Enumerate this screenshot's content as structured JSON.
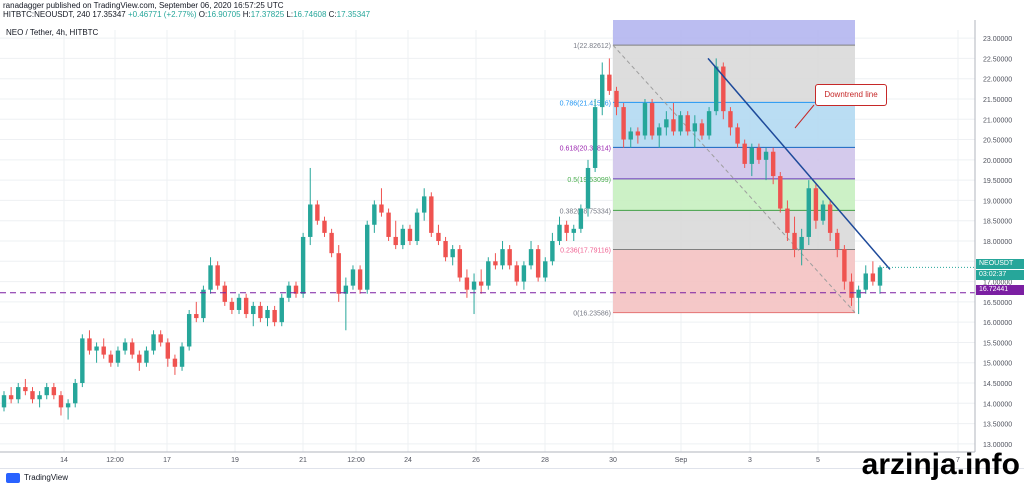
{
  "header": {
    "published": "ranadagger published on TradingView.com, September 06, 2020 16:57:25 UTC",
    "symbol": "HITBTC:NEOUSDT, 240",
    "price": "17.35347",
    "change": "+0.46771 (+2.77%)",
    "o_label": "O:",
    "o": "16.90705",
    "h_label": "H:",
    "h": "17.37825",
    "l_label": "L:",
    "l": "16.74608",
    "c_label": "C:",
    "c": "17.35347"
  },
  "legend": "NEO / Tether, 4h, HITBTC",
  "badges": {
    "symbol_price": "NEOUSDT 17.35347",
    "countdown": "03:02:37",
    "support": "16.72441"
  },
  "annotation": "Downtrend line",
  "footer": {
    "brand": "TradingView"
  },
  "watermark": "arzinja.info",
  "colors": {
    "up": "#26a69a",
    "down": "#ef5350",
    "trendline": "#1e4a9a",
    "support": "#7b1fa2"
  },
  "chart_data": {
    "type": "candlestick",
    "x_ticks": [
      "14",
      "12:00",
      "17",
      "19",
      "21",
      "12:00",
      "24",
      "26",
      "28",
      "30",
      "Sep",
      "3",
      "5",
      "7"
    ],
    "y_ticks": [
      "13.00000",
      "13.50000",
      "14.00000",
      "14.50000",
      "15.00000",
      "15.50000",
      "16.00000",
      "16.50000",
      "17.00000",
      "17.50000",
      "18.00000",
      "18.50000",
      "19.00000",
      "19.50000",
      "20.00000",
      "20.50000",
      "21.00000",
      "21.50000",
      "22.00000",
      "22.50000",
      "23.00000"
    ],
    "ylim": [
      12.8,
      23.2
    ],
    "support_level": 16.72441,
    "fibonacci": [
      {
        "ratio": "1",
        "label": "1(22.82612)",
        "price": 22.82612,
        "fill": "#b4b6ef"
      },
      {
        "ratio": "0.786",
        "label": "0.786(21.41586)",
        "price": 21.41586,
        "fill": "#d9d9d9"
      },
      {
        "ratio": "0.618",
        "label": "0.618(20.30814)",
        "price": 20.30814,
        "fill": "#b3d9f2"
      },
      {
        "ratio": "0.5",
        "label": "0.5(19.53099)",
        "price": 19.53099,
        "fill": "#cfc4ea"
      },
      {
        "ratio": "0.382",
        "label": "0.382(18.75334)",
        "price": 18.75334,
        "fill": "#c6efc0"
      },
      {
        "ratio": "0.236",
        "label": "0.236(17.79116)",
        "price": 17.79116,
        "fill": "#d9d9d9"
      },
      {
        "ratio": "0",
        "label": "0(16.23586)",
        "price": 16.23586,
        "fill": "#f4c2c2"
      }
    ],
    "downtrend_line": {
      "start": {
        "x_index": 110,
        "price": 22.5
      },
      "end": {
        "x_index": 135,
        "price": 17.3
      }
    },
    "candles": [
      [
        13.9,
        14.3,
        13.8,
        14.2
      ],
      [
        14.2,
        14.4,
        14.0,
        14.1
      ],
      [
        14.1,
        14.5,
        14.0,
        14.4
      ],
      [
        14.4,
        14.6,
        14.2,
        14.3
      ],
      [
        14.3,
        14.4,
        14.0,
        14.1
      ],
      [
        14.1,
        14.3,
        13.9,
        14.2
      ],
      [
        14.2,
        14.5,
        14.1,
        14.4
      ],
      [
        14.4,
        14.5,
        14.1,
        14.2
      ],
      [
        14.2,
        14.3,
        13.7,
        13.9
      ],
      [
        13.9,
        14.1,
        13.6,
        14.0
      ],
      [
        14.0,
        14.6,
        13.9,
        14.5
      ],
      [
        14.5,
        15.7,
        14.4,
        15.6
      ],
      [
        15.6,
        15.8,
        15.2,
        15.3
      ],
      [
        15.3,
        15.5,
        15.0,
        15.4
      ],
      [
        15.4,
        15.6,
        15.1,
        15.2
      ],
      [
        15.2,
        15.3,
        14.9,
        15.0
      ],
      [
        15.0,
        15.4,
        14.9,
        15.3
      ],
      [
        15.3,
        15.6,
        15.2,
        15.5
      ],
      [
        15.5,
        15.6,
        15.1,
        15.2
      ],
      [
        15.2,
        15.3,
        14.8,
        15.0
      ],
      [
        15.0,
        15.4,
        14.9,
        15.3
      ],
      [
        15.3,
        15.8,
        15.2,
        15.7
      ],
      [
        15.7,
        15.8,
        15.4,
        15.5
      ],
      [
        15.5,
        15.6,
        14.9,
        15.1
      ],
      [
        15.1,
        15.2,
        14.7,
        14.9
      ],
      [
        14.9,
        15.5,
        14.8,
        15.4
      ],
      [
        15.4,
        16.3,
        15.3,
        16.2
      ],
      [
        16.2,
        16.5,
        16.0,
        16.1
      ],
      [
        16.1,
        16.9,
        16.0,
        16.8
      ],
      [
        16.8,
        17.6,
        16.7,
        17.4
      ],
      [
        17.4,
        17.5,
        16.8,
        16.9
      ],
      [
        16.9,
        17.0,
        16.4,
        16.5
      ],
      [
        16.5,
        16.6,
        16.2,
        16.3
      ],
      [
        16.3,
        16.7,
        16.2,
        16.6
      ],
      [
        16.6,
        16.7,
        16.1,
        16.2
      ],
      [
        16.2,
        16.5,
        15.9,
        16.4
      ],
      [
        16.4,
        16.5,
        16.0,
        16.1
      ],
      [
        16.1,
        16.4,
        15.9,
        16.3
      ],
      [
        16.3,
        16.4,
        15.9,
        16.0
      ],
      [
        16.0,
        16.7,
        15.9,
        16.6
      ],
      [
        16.6,
        17.0,
        16.5,
        16.9
      ],
      [
        16.9,
        17.0,
        16.6,
        16.7
      ],
      [
        16.7,
        18.2,
        16.6,
        18.1
      ],
      [
        18.1,
        19.8,
        17.9,
        18.9
      ],
      [
        18.9,
        19.0,
        18.4,
        18.5
      ],
      [
        18.5,
        18.6,
        18.1,
        18.2
      ],
      [
        18.2,
        18.3,
        17.6,
        17.7
      ],
      [
        17.7,
        17.9,
        16.5,
        16.7
      ],
      [
        16.7,
        17.1,
        15.8,
        16.9
      ],
      [
        16.9,
        17.4,
        16.8,
        17.3
      ],
      [
        17.3,
        17.4,
        16.7,
        16.8
      ],
      [
        16.8,
        18.5,
        16.7,
        18.4
      ],
      [
        18.4,
        19.0,
        18.2,
        18.9
      ],
      [
        18.9,
        19.3,
        18.6,
        18.7
      ],
      [
        18.7,
        18.8,
        18.0,
        18.1
      ],
      [
        18.1,
        18.5,
        17.8,
        17.9
      ],
      [
        17.9,
        18.4,
        17.8,
        18.3
      ],
      [
        18.3,
        18.4,
        17.9,
        18.0
      ],
      [
        18.0,
        18.8,
        17.9,
        18.7
      ],
      [
        18.7,
        19.3,
        18.5,
        19.1
      ],
      [
        19.1,
        19.2,
        18.1,
        18.2
      ],
      [
        18.2,
        18.4,
        17.9,
        18.0
      ],
      [
        18.0,
        18.1,
        17.5,
        17.6
      ],
      [
        17.6,
        17.9,
        17.4,
        17.8
      ],
      [
        17.8,
        17.9,
        17.0,
        17.1
      ],
      [
        17.1,
        17.3,
        16.6,
        16.8
      ],
      [
        16.8,
        17.2,
        16.2,
        17.0
      ],
      [
        17.0,
        17.3,
        16.7,
        16.9
      ],
      [
        16.9,
        17.6,
        16.8,
        17.5
      ],
      [
        17.5,
        17.7,
        17.3,
        17.4
      ],
      [
        17.4,
        18.0,
        17.3,
        17.8
      ],
      [
        17.8,
        17.9,
        17.3,
        17.4
      ],
      [
        17.4,
        17.5,
        16.9,
        17.0
      ],
      [
        17.0,
        17.5,
        16.8,
        17.4
      ],
      [
        17.4,
        18.0,
        17.3,
        17.8
      ],
      [
        17.8,
        17.9,
        17.0,
        17.1
      ],
      [
        17.1,
        17.6,
        17.0,
        17.5
      ],
      [
        17.5,
        18.2,
        17.4,
        18.0
      ],
      [
        18.0,
        18.6,
        17.9,
        18.4
      ],
      [
        18.4,
        18.5,
        18.0,
        18.2
      ],
      [
        18.2,
        18.4,
        18.0,
        18.3
      ],
      [
        18.3,
        18.9,
        18.2,
        18.8
      ],
      [
        18.8,
        20.0,
        18.6,
        19.8
      ],
      [
        19.8,
        21.5,
        19.7,
        21.3
      ],
      [
        21.3,
        22.4,
        21.1,
        22.1
      ],
      [
        22.1,
        22.5,
        21.6,
        21.7
      ],
      [
        21.7,
        21.8,
        21.1,
        21.3
      ],
      [
        21.3,
        21.4,
        20.3,
        20.5
      ],
      [
        20.5,
        20.8,
        20.3,
        20.7
      ],
      [
        20.7,
        20.8,
        20.4,
        20.6
      ],
      [
        20.6,
        21.5,
        20.5,
        21.4
      ],
      [
        21.4,
        21.5,
        20.5,
        20.6
      ],
      [
        20.6,
        20.9,
        20.3,
        20.8
      ],
      [
        20.8,
        21.2,
        20.6,
        21.0
      ],
      [
        21.0,
        21.4,
        20.6,
        20.7
      ],
      [
        20.7,
        21.2,
        20.6,
        21.1
      ],
      [
        21.1,
        21.2,
        20.6,
        20.7
      ],
      [
        20.7,
        21.1,
        20.3,
        20.9
      ],
      [
        20.9,
        21.0,
        20.5,
        20.6
      ],
      [
        20.6,
        21.3,
        20.5,
        21.2
      ],
      [
        21.2,
        22.5,
        21.1,
        22.3
      ],
      [
        22.3,
        22.4,
        21.0,
        21.2
      ],
      [
        21.2,
        21.3,
        20.6,
        20.8
      ],
      [
        20.8,
        20.9,
        20.3,
        20.4
      ],
      [
        20.4,
        20.5,
        19.8,
        19.9
      ],
      [
        19.9,
        20.4,
        19.6,
        20.3
      ],
      [
        20.3,
        20.4,
        19.9,
        20.0
      ],
      [
        20.0,
        20.3,
        19.5,
        20.2
      ],
      [
        20.2,
        20.3,
        19.4,
        19.6
      ],
      [
        19.6,
        19.7,
        18.7,
        18.8
      ],
      [
        18.8,
        19.0,
        18.0,
        18.2
      ],
      [
        18.2,
        18.6,
        17.6,
        17.8
      ],
      [
        17.8,
        18.3,
        17.4,
        18.1
      ],
      [
        18.1,
        19.5,
        17.9,
        19.3
      ],
      [
        19.3,
        19.4,
        18.3,
        18.5
      ],
      [
        18.5,
        19.0,
        18.4,
        18.9
      ],
      [
        18.9,
        19.0,
        18.0,
        18.2
      ],
      [
        18.2,
        18.3,
        17.6,
        17.8
      ],
      [
        17.8,
        17.9,
        16.8,
        17.0
      ],
      [
        17.0,
        17.2,
        16.4,
        16.6
      ],
      [
        16.6,
        16.9,
        16.2,
        16.8
      ],
      [
        16.8,
        17.4,
        16.7,
        17.2
      ],
      [
        17.2,
        17.5,
        16.9,
        17.0
      ],
      [
        16.9,
        17.4,
        16.7,
        17.35
      ]
    ]
  }
}
